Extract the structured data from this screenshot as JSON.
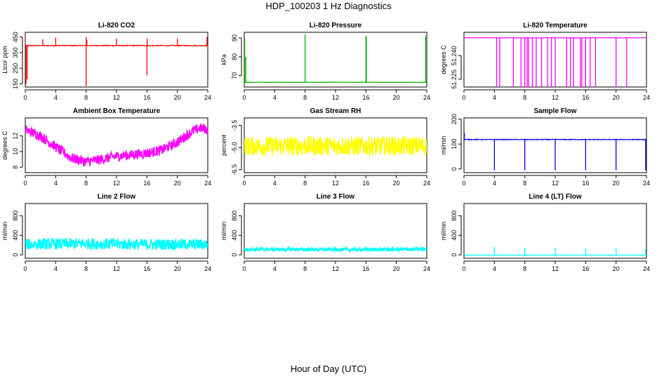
{
  "figure": {
    "title": "HDP_100203  1 Hz Diagnostics",
    "xlabel": "Hour of Day (UTC)"
  },
  "chart_data": [
    {
      "type": "line",
      "title": "Li-820 CO2",
      "ylabel": "Licor ppm",
      "color": "#ff0000",
      "xlim": [
        0,
        24
      ],
      "ylim": [
        130,
        480
      ],
      "xticks": [
        "0",
        "4",
        "8",
        "12",
        "16",
        "20",
        "24"
      ],
      "yticks": [
        "150",
        "250",
        "350",
        "450"
      ],
      "ytick_values": [
        150,
        250,
        350,
        450
      ],
      "baseline": 395,
      "noise": 6,
      "x": [
        0,
        0.1,
        0.25,
        2.3,
        4.0,
        8.0,
        8.02,
        8.1,
        12.0,
        16.0,
        16.03,
        20.0,
        23.9,
        24.0
      ],
      "values": [
        465,
        150,
        180,
        435,
        445,
        135,
        450,
        430,
        440,
        205,
        440,
        440,
        450,
        375
      ]
    },
    {
      "type": "line",
      "title": "Li-820 Pressure",
      "ylabel": "kPa",
      "color": "#00b000",
      "xlim": [
        0,
        24
      ],
      "ylim": [
        64,
        93
      ],
      "xticks": [
        "0",
        "4",
        "8",
        "12",
        "16",
        "20",
        "24"
      ],
      "yticks": [
        "70",
        "80",
        "90"
      ],
      "ytick_values": [
        70,
        80,
        90
      ],
      "baseline": 66.5,
      "noise": 0.2,
      "x": [
        0.05,
        0.2,
        8.0,
        16.0,
        16.05,
        23.85
      ],
      "values": [
        90,
        80,
        92,
        91,
        91,
        91
      ]
    },
    {
      "type": "line",
      "title": "Li-820 Temperature",
      "ylabel": "degrees C",
      "color": "#ff00ff",
      "xlim": [
        0,
        24
      ],
      "ylim": [
        51.22,
        51.255
      ],
      "xticks": [
        "0",
        "4",
        "8",
        "12",
        "16",
        "20",
        "24"
      ],
      "yticks": [
        "51.225",
        "51.240"
      ],
      "ytick_values": [
        51.225,
        51.24
      ],
      "baseline": 51.2515,
      "noise": 0.0002,
      "x": [
        4.3,
        4.7,
        6.5,
        7.5,
        8.0,
        8.3,
        8.5,
        9.0,
        9.5,
        10.2,
        11.0,
        11.5,
        12.0,
        13.5,
        14.0,
        14.4,
        15.3,
        15.5,
        16.0,
        16.6,
        17.3,
        20.0,
        21.4
      ],
      "values": [
        51.22,
        51.22,
        51.22,
        51.22,
        51.22,
        51.22,
        51.22,
        51.22,
        51.22,
        51.22,
        51.22,
        51.22,
        51.22,
        51.22,
        51.22,
        51.22,
        51.22,
        51.22,
        51.22,
        51.22,
        51.22,
        51.22,
        51.22
      ]
    },
    {
      "type": "line",
      "title": "Ambient Box Temperature",
      "ylabel": "degrees C",
      "color": "#ff00ff",
      "xlim": [
        0,
        24
      ],
      "ylim": [
        7.3,
        14.3
      ],
      "xticks": [
        "0",
        "4",
        "8",
        "12",
        "16",
        "20",
        "24"
      ],
      "yticks": [
        "8",
        "10",
        "12"
      ],
      "ytick_values": [
        8,
        10,
        12
      ],
      "band": 1.3,
      "x": [
        0,
        2,
        4,
        6,
        8,
        10,
        12,
        14,
        16,
        18,
        20,
        22,
        23,
        24
      ],
      "values": [
        12.8,
        12.0,
        10.6,
        9.2,
        8.7,
        9.0,
        9.4,
        9.6,
        9.8,
        10.2,
        11.2,
        12.6,
        13.0,
        12.8
      ]
    },
    {
      "type": "line",
      "title": "Gas Stream RH",
      "ylabel": "percent",
      "color": "#ffff00",
      "xlim": [
        0,
        24
      ],
      "ylim": [
        -6.7,
        -3.0
      ],
      "xticks": [
        "0",
        "4",
        "8",
        "12",
        "16",
        "20",
        "24"
      ],
      "yticks": [
        "-6.5",
        "-5.0",
        "-3.5"
      ],
      "ytick_values": [
        -6.5,
        -5.0,
        -3.5
      ],
      "band": 1.3,
      "x": [
        0,
        6,
        12,
        18,
        24
      ],
      "values": [
        -4.9,
        -4.9,
        -4.9,
        -4.9,
        -4.9
      ]
    },
    {
      "type": "line",
      "title": "Sample Flow",
      "ylabel": "ml/min",
      "color": "#0000dd",
      "xlim": [
        0,
        24
      ],
      "ylim": [
        -15,
        205
      ],
      "xticks": [
        "0",
        "4",
        "8",
        "12",
        "16",
        "20",
        "24"
      ],
      "yticks": [
        "0",
        "100",
        "200"
      ],
      "ytick_values": [
        0,
        100,
        200
      ],
      "baseline": 118,
      "noise": 3,
      "x": [
        0.05,
        4.0,
        8.0,
        12.0,
        16.0,
        20.0,
        23.9
      ],
      "values": [
        145,
        -5,
        -5,
        -5,
        -5,
        -5,
        -5
      ]
    },
    {
      "type": "line",
      "title": "Line 2 Flow",
      "ylabel": "ml/min",
      "color": "#00ffff",
      "xlim": [
        0,
        24
      ],
      "ylim": [
        -70,
        1050
      ],
      "xticks": [
        "0",
        "4",
        "8",
        "12",
        "16",
        "20",
        "24"
      ],
      "yticks": [
        "0",
        "400",
        "800"
      ],
      "ytick_values": [
        0,
        400,
        800
      ],
      "band": 230,
      "x": [
        0,
        4,
        8,
        12,
        16,
        20,
        24
      ],
      "values": [
        215,
        225,
        230,
        220,
        215,
        215,
        215
      ]
    },
    {
      "type": "line",
      "title": "Line 3 Flow",
      "ylabel": "ml/min",
      "color": "#00ffff",
      "xlim": [
        0,
        24
      ],
      "ylim": [
        -70,
        1050
      ],
      "xticks": [
        "0",
        "4",
        "8",
        "12",
        "16",
        "20",
        "24"
      ],
      "yticks": [
        "0",
        "400",
        "800"
      ],
      "ytick_values": [
        0,
        400,
        800
      ],
      "band": 70,
      "x": [
        0,
        6,
        12,
        18,
        24
      ],
      "values": [
        115,
        112,
        110,
        110,
        115
      ]
    },
    {
      "type": "line",
      "title": "Line 4 (LT) Flow",
      "ylabel": "ml/min",
      "color": "#00ffff",
      "xlim": [
        0,
        24
      ],
      "ylim": [
        -70,
        1050
      ],
      "xticks": [
        "0",
        "4",
        "8",
        "12",
        "16",
        "20",
        "24"
      ],
      "yticks": [
        "0",
        "400",
        "800"
      ],
      "ytick_values": [
        0,
        400,
        800
      ],
      "baseline": -5,
      "noise": 6,
      "x": [
        4.0,
        8.0,
        12.0,
        16.0,
        20.0,
        23.9
      ],
      "values": [
        160,
        150,
        150,
        130,
        140,
        120
      ]
    }
  ]
}
